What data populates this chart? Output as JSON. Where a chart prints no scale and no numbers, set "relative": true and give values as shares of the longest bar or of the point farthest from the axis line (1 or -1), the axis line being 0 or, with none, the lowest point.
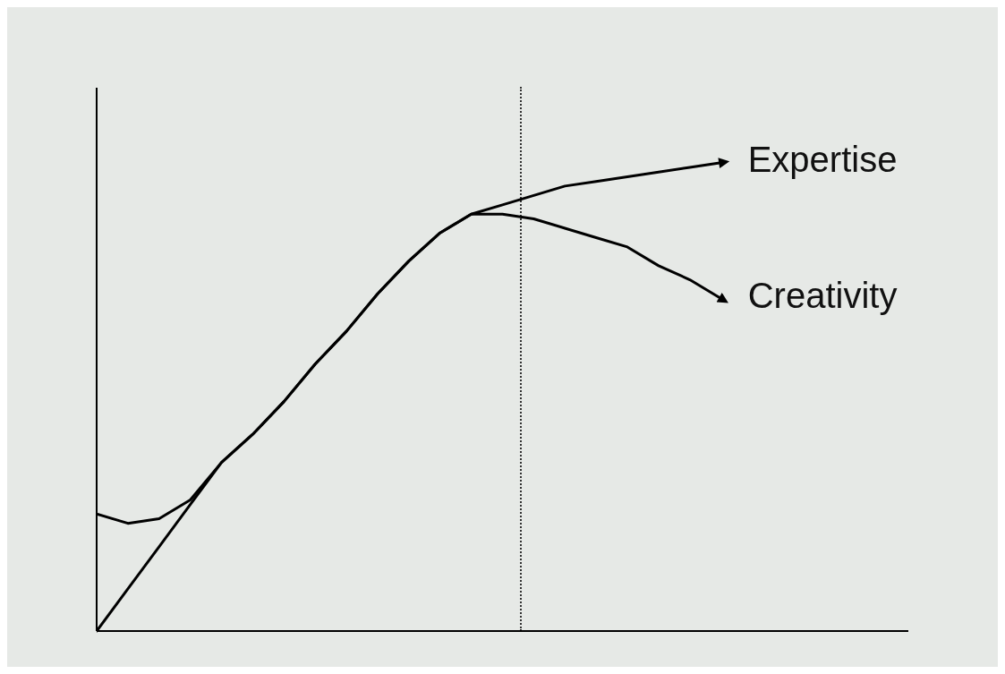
{
  "chart_data": {
    "type": "line",
    "relative": true,
    "categories": [
      null,
      null,
      null,
      null,
      null,
      null,
      null,
      null,
      null,
      null,
      null,
      null,
      null,
      null,
      null,
      null,
      null,
      null,
      null,
      null,
      null
    ],
    "series": [
      {
        "name": "Expertise",
        "color": "#000000",
        "values": [
          0,
          0.09,
          0.18,
          0.27,
          0.36,
          0.42,
          0.49,
          0.57,
          0.64,
          0.72,
          0.79,
          0.85,
          0.89,
          0.91,
          0.93,
          0.95,
          0.96,
          0.97,
          0.98,
          0.99,
          1
        ]
      },
      {
        "name": "Creativity",
        "color": "#000000",
        "values": [
          0.25,
          0.23,
          0.24,
          0.28,
          0.36,
          0.42,
          0.49,
          0.57,
          0.64,
          0.72,
          0.79,
          0.85,
          0.89,
          0.89,
          0.88,
          0.86,
          0.84,
          0.82,
          0.78,
          0.75,
          0.71
        ]
      }
    ],
    "grid": false,
    "legend": false,
    "marker": "none",
    "line_style": "solid"
  }
}
